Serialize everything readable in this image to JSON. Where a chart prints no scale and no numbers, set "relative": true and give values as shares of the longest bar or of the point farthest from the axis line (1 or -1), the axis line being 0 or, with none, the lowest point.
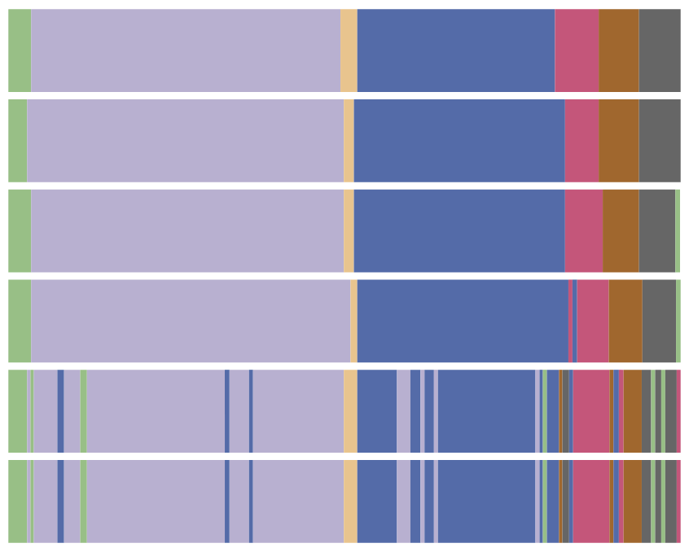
{
  "chart_data": {
    "type": "bar",
    "orientation": "horizontal",
    "stacked": true,
    "relative": true,
    "grid": false,
    "legend": false,
    "categories": [
      null,
      null,
      null,
      null,
      null,
      null
    ],
    "series": [
      {
        "color": "#98bf86",
        "values": [
          0.034,
          0.028,
          0.034,
          0.034,
          0.028,
          0.028
        ]
      },
      {
        "color": "#b8b0d0",
        "values": [
          null,
          null,
          null,
          null,
          0.005,
          0.005
        ]
      },
      {
        "color": "#98bf86",
        "values": [
          null,
          null,
          null,
          null,
          0.005,
          0.005
        ]
      },
      {
        "color": "#b8b0d0",
        "values": [
          null,
          null,
          null,
          null,
          0.035,
          0.035
        ]
      },
      {
        "color": "#546ba8",
        "values": [
          null,
          null,
          null,
          null,
          0.01,
          0.01
        ]
      },
      {
        "color": "#b8b0d0",
        "values": [
          null,
          null,
          null,
          null,
          0.024,
          0.024
        ]
      },
      {
        "color": "#98bf86",
        "values": [
          null,
          null,
          null,
          null,
          0.01,
          0.01
        ]
      },
      {
        "color": "#b8b0d0",
        "values": [
          0.46,
          0.471,
          0.465,
          0.475,
          0.205,
          0.205
        ]
      },
      {
        "color": "#546ba8",
        "values": [
          null,
          null,
          null,
          null,
          0.007,
          0.007
        ]
      },
      {
        "color": "#b8b0d0",
        "values": [
          null,
          null,
          null,
          null,
          0.029,
          0.029
        ]
      },
      {
        "color": "#546ba8",
        "values": [
          null,
          null,
          null,
          null,
          0.006,
          0.006
        ]
      },
      {
        "color": "#b8b0d0",
        "values": [
          null,
          null,
          null,
          null,
          0.135,
          0.135
        ]
      },
      {
        "color": "#e8c48e",
        "values": [
          0.025,
          0.015,
          0.015,
          0.01,
          0.02,
          0.02
        ]
      },
      {
        "color": "#546ba8",
        "values": [
          null,
          null,
          null,
          null,
          0.059,
          0.059
        ]
      },
      {
        "color": "#b8b0d0",
        "values": [
          null,
          null,
          null,
          null,
          0.02,
          0.02
        ]
      },
      {
        "color": "#546ba8",
        "values": [
          null,
          null,
          null,
          null,
          0.015,
          0.015
        ]
      },
      {
        "color": "#b8b0d0",
        "values": [
          null,
          null,
          null,
          null,
          0.006,
          0.006
        ]
      },
      {
        "color": "#546ba8",
        "values": [
          null,
          null,
          null,
          null,
          0.014,
          0.014
        ]
      },
      {
        "color": "#b8b0d0",
        "values": [
          null,
          null,
          null,
          null,
          0.006,
          0.006
        ]
      },
      {
        "color": "#546ba8",
        "values": [
          0.294,
          0.314,
          0.314,
          null,
          0.145,
          0.145
        ]
      },
      {
        "color": "#b8b0d0",
        "values": [
          null,
          null,
          null,
          null,
          0.006,
          0.006
        ]
      },
      {
        "color": "#546ba8",
        "values": [
          null,
          null,
          null,
          null,
          0.005,
          0.005
        ]
      },
      {
        "color": "#98bf86",
        "values": [
          null,
          null,
          null,
          null,
          0.006,
          0.006
        ]
      },
      {
        "color": "#546ba8",
        "values": [
          null,
          null,
          null,
          0.314,
          0.018,
          0.018
        ]
      },
      {
        "color": "#a0672e",
        "values": [
          null,
          null,
          null,
          null,
          0.005,
          0.005
        ]
      },
      {
        "color": "#666666",
        "values": [
          null,
          null,
          null,
          null,
          0.01,
          0.01
        ]
      },
      {
        "color": "#546ba8",
        "values": [
          null,
          null,
          null,
          null,
          0.006,
          0.006
        ]
      },
      {
        "color": "#c4567a",
        "values": [
          0.065,
          0.05,
          0.056,
          0.006,
          0.054,
          0.054
        ]
      },
      {
        "color": "#a0672e",
        "values": [
          null,
          null,
          null,
          null,
          0.006,
          0.006
        ]
      },
      {
        "color": "#546ba8",
        "values": [
          null,
          null,
          null,
          0.007,
          0.008,
          0.008
        ]
      },
      {
        "color": "#c4567a",
        "values": [
          null,
          null,
          null,
          0.047,
          0.007,
          0.007
        ]
      },
      {
        "color": "#a0672e",
        "values": [
          0.06,
          0.06,
          0.054,
          0.05,
          0.027,
          0.027
        ]
      },
      {
        "color": "#666666",
        "values": [
          null,
          null,
          null,
          null,
          0.014,
          0.014
        ]
      },
      {
        "color": "#98bf86",
        "values": [
          null,
          null,
          null,
          null,
          0.006,
          0.006
        ]
      },
      {
        "color": "#666666",
        "values": [
          null,
          null,
          null,
          null,
          0.009,
          0.009
        ]
      },
      {
        "color": "#98bf86",
        "values": [
          null,
          null,
          null,
          null,
          0.006,
          0.006
        ]
      },
      {
        "color": "#666666",
        "values": [
          0.062,
          0.062,
          0.054,
          0.05,
          0.017,
          0.017
        ]
      },
      {
        "color": "#c4567a",
        "values": [
          null,
          null,
          null,
          null,
          0.006,
          0.006
        ]
      },
      {
        "color": "#98bf86",
        "values": [
          null,
          null,
          0.007,
          0.007,
          null,
          null
        ]
      }
    ]
  }
}
